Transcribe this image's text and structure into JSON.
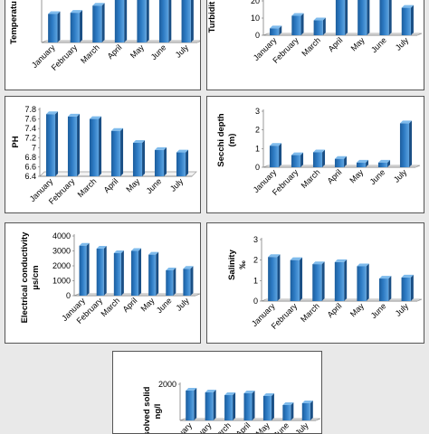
{
  "chart_data": [
    {
      "id": "temperature",
      "type": "bar",
      "ylabel": [
        "Temperatu"
      ],
      "categories": [
        "January",
        "February",
        "March",
        "April",
        "May",
        "June",
        "July"
      ],
      "values": [
        24,
        25,
        31,
        36,
        36,
        36,
        36
      ],
      "ylim": [
        0,
        35
      ],
      "yticks": [],
      "bar_color": "#2d7bc4"
    },
    {
      "id": "turbidity",
      "type": "bar",
      "ylabel": [
        "Turbidit"
      ],
      "categories": [
        "January",
        "February",
        "March",
        "April",
        "May",
        "June",
        "July"
      ],
      "values": [
        6,
        17,
        13,
        35,
        35,
        35,
        24
      ],
      "ylim": [
        0,
        30
      ],
      "yticks": [
        "0",
        "10",
        "20"
      ],
      "bar_color": "#2d7bc4"
    },
    {
      "id": "ph",
      "type": "bar",
      "ylabel": [
        "PH"
      ],
      "categories": [
        "January",
        "February",
        "March",
        "April",
        "May",
        "June",
        "July"
      ],
      "values": [
        7.7,
        7.65,
        7.6,
        7.35,
        7.1,
        6.95,
        6.9
      ],
      "ylim": [
        6.4,
        7.8
      ],
      "yticks": [
        "6.4",
        "6.6",
        "6.8",
        "7",
        "7.2",
        "7.4",
        "7.6",
        "7.8"
      ],
      "bar_color": "#2d7bc4"
    },
    {
      "id": "secchi",
      "type": "bar",
      "ylabel": [
        "Secchi depth",
        "(m)"
      ],
      "categories": [
        "January",
        "February",
        "March",
        "April",
        "May",
        "June",
        "July"
      ],
      "values": [
        1.15,
        0.65,
        0.8,
        0.45,
        0.25,
        0.25,
        2.35
      ],
      "ylim": [
        0,
        3
      ],
      "yticks": [
        "0",
        "1",
        "2",
        "3"
      ],
      "bar_color": "#2d7bc4"
    },
    {
      "id": "ec",
      "type": "bar",
      "ylabel": [
        "Electrical conductivity",
        "µs/cm"
      ],
      "categories": [
        "January",
        "February",
        "March",
        "April",
        "May",
        "June",
        "July"
      ],
      "values": [
        3350,
        3150,
        2850,
        3000,
        2750,
        1700,
        1800
      ],
      "ylim": [
        0,
        4000
      ],
      "yticks": [
        "0",
        "1000",
        "2000",
        "3000",
        "4000"
      ],
      "bar_color": "#2d7bc4"
    },
    {
      "id": "salinity",
      "type": "bar",
      "ylabel": [
        "Salinity",
        "‰"
      ],
      "categories": [
        "January",
        "February",
        "March",
        "April",
        "May",
        "June",
        "July"
      ],
      "values": [
        2.15,
        2.0,
        1.8,
        1.9,
        1.7,
        1.1,
        1.15
      ],
      "ylim": [
        0,
        3
      ],
      "yticks": [
        "0",
        "1",
        "2",
        "3"
      ],
      "bar_color": "#2d7bc4"
    },
    {
      "id": "tds",
      "type": "bar",
      "ylabel": [
        "solved solid",
        "ng/l"
      ],
      "categories": [
        "January",
        "February",
        "March",
        "April",
        "May",
        "June",
        "July"
      ],
      "values": [
        1650,
        1550,
        1400,
        1500,
        1350,
        850,
        950
      ],
      "ylim": [
        0,
        2000
      ],
      "yticks": [
        "",
        "2000"
      ],
      "bar_color": "#2d7bc4"
    }
  ]
}
